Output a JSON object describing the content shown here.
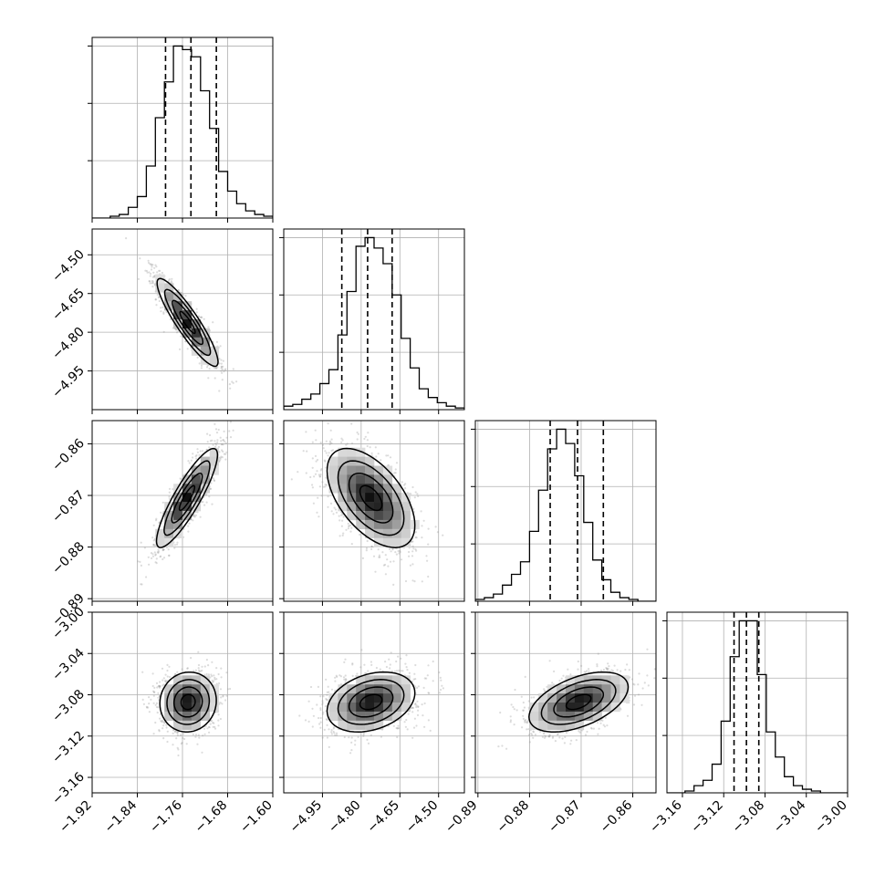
{
  "chart_data": {
    "type": "corner",
    "grid": true,
    "parameters": [
      {
        "range": [
          -1.92,
          -1.6
        ],
        "ticks": [
          -1.92,
          -1.84,
          -1.76,
          -1.68,
          -1.6
        ],
        "tick_labels": [
          "−1.92",
          "−1.84",
          "−1.76",
          "−1.68",
          "−1.60"
        ],
        "quantiles": [
          -1.79,
          -1.745,
          -1.7
        ],
        "hist": [
          0.0,
          0.0,
          0.01,
          0.02,
          0.06,
          0.12,
          0.29,
          0.56,
          0.76,
          0.96,
          0.94,
          0.9,
          0.71,
          0.5,
          0.26,
          0.15,
          0.08,
          0.04,
          0.02,
          0.01
        ]
      },
      {
        "range": [
          -5.1,
          -4.4
        ],
        "ticks": [
          -4.95,
          -4.8,
          -4.65,
          -4.5
        ],
        "tick_labels": [
          "−4.95",
          "−4.80",
          "−4.65",
          "−4.50"
        ],
        "quantiles": [
          -4.875,
          -4.775,
          -4.68
        ],
        "hist": [
          0.02,
          0.03,
          0.06,
          0.09,
          0.15,
          0.23,
          0.43,
          0.68,
          0.94,
          0.99,
          0.93,
          0.84,
          0.66,
          0.41,
          0.24,
          0.12,
          0.07,
          0.04,
          0.02,
          0.01
        ]
      },
      {
        "range": [
          -0.8905,
          -0.8555
        ],
        "ticks": [
          -0.89,
          -0.88,
          -0.87,
          -0.86
        ],
        "tick_labels": [
          "−0.89",
          "−0.88",
          "−0.87",
          "−0.86"
        ],
        "quantiles": [
          -0.876,
          -0.8707,
          -0.8657
        ],
        "hist": [
          0.01,
          0.02,
          0.04,
          0.09,
          0.15,
          0.22,
          0.39,
          0.62,
          0.85,
          0.96,
          0.88,
          0.7,
          0.44,
          0.23,
          0.12,
          0.05,
          0.02,
          0.01,
          0.0,
          0.0
        ]
      },
      {
        "range": [
          -3.175,
          -3.0
        ],
        "ticks": [
          -3.16,
          -3.12,
          -3.08,
          -3.04,
          -3.0
        ],
        "tick_labels": [
          "−3.16",
          "−3.12",
          "−3.08",
          "−3.04",
          "−3.00"
        ],
        "quantiles": [
          -3.11,
          -3.098,
          -3.086
        ],
        "hist": [
          0.0,
          0.0,
          0.01,
          0.04,
          0.07,
          0.16,
          0.4,
          0.76,
          0.96,
          0.96,
          0.66,
          0.34,
          0.2,
          0.09,
          0.04,
          0.02,
          0.01,
          0.0,
          0.0,
          0.0
        ]
      }
    ],
    "joint": [
      {
        "i": 1,
        "j": 0,
        "mean": [
          -1.751,
          -4.762
        ],
        "sd": [
          0.027,
          0.085
        ],
        "corr": -0.9
      },
      {
        "i": 2,
        "j": 0,
        "mean": [
          -1.752,
          -0.8705
        ],
        "sd": [
          0.027,
          0.0048
        ],
        "corr": 0.87
      },
      {
        "i": 2,
        "j": 1,
        "mean": [
          -4.762,
          -0.8705
        ],
        "sd": [
          0.085,
          0.0048
        ],
        "corr": -0.55
      },
      {
        "i": 3,
        "j": 0,
        "mean": [
          -1.75,
          -3.087
        ],
        "sd": [
          0.025,
          0.0145
        ],
        "corr": 0.05
      },
      {
        "i": 3,
        "j": 1,
        "mean": [
          -4.762,
          -3.087
        ],
        "sd": [
          0.085,
          0.0145
        ],
        "corr": 0.3
      },
      {
        "i": 3,
        "j": 2,
        "mean": [
          -0.8705,
          -3.087
        ],
        "sd": [
          0.0048,
          0.0145
        ],
        "corr": 0.5
      }
    ],
    "colors": {
      "scatter": "#9a9a9a",
      "line": "#000000",
      "grid": "#b0b0b0"
    }
  }
}
